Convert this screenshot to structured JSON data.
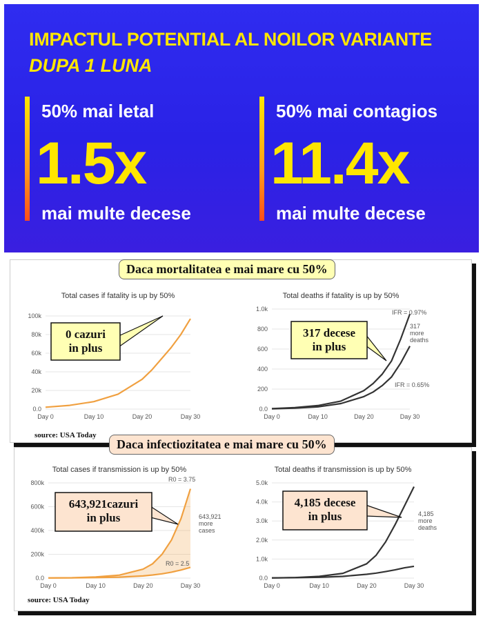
{
  "banner": {
    "title": "IMPACTUL POTENTIAL AL NOILOR VARIANTE",
    "subtitle": "DUPA 1 LUNA",
    "left": {
      "head": "50% mai letal",
      "value": "1.5x",
      "foot": "mai multe decese"
    },
    "right": {
      "head": "50% mai contagios",
      "value": "11.4x",
      "foot": "mai multe decese"
    }
  },
  "section1": {
    "title": "Daca mortalitatea e mai mare cu 50%",
    "source": "source: USA Today"
  },
  "section2": {
    "title": "Daca infectiozitatea e mai mare cu 50%",
    "source": "source: USA Today"
  },
  "colors": {
    "orange": "#f0a040",
    "dark": "#333333",
    "callout_yellow": "#ffffb4",
    "callout_peach": "#fde4d0",
    "banner_yellow": "#ffe600"
  },
  "chart_data": [
    {
      "type": "line",
      "title": "Total cases if fatality is up by 50%",
      "x_ticks": [
        "Day 0",
        "Day 10",
        "Day 20",
        "Day 30"
      ],
      "y_ticks": [
        "0.0",
        "20k",
        "40k",
        "60k",
        "80k",
        "100k"
      ],
      "ylim": [
        0,
        100000
      ],
      "xlim": [
        0,
        30
      ],
      "series": [
        {
          "color": "#f0a040",
          "x": [
            0,
            5,
            10,
            15,
            20,
            22,
            24,
            26,
            28,
            30
          ],
          "y": [
            2000,
            4000,
            8000,
            16000,
            32000,
            42000,
            54000,
            66000,
            80000,
            97000
          ]
        }
      ],
      "callout": [
        "0 cazuri",
        "in plus"
      ]
    },
    {
      "type": "line",
      "title": "Total deaths if fatality is up by 50%",
      "x_ticks": [
        "Day 0",
        "Day 10",
        "Day 20",
        "Day 30"
      ],
      "y_ticks": [
        "0.0",
        "200",
        "400",
        "600",
        "800",
        "1.0k"
      ],
      "ylim": [
        0,
        1000
      ],
      "xlim": [
        0,
        30
      ],
      "series": [
        {
          "color": "#333333",
          "label": "IFR = 0.97%",
          "x": [
            0,
            5,
            10,
            15,
            20,
            22,
            24,
            26,
            28,
            30
          ],
          "y": [
            5,
            15,
            35,
            80,
            185,
            255,
            350,
            480,
            700,
            950
          ]
        },
        {
          "color": "#333333",
          "label": "IFR = 0.65%",
          "x": [
            0,
            5,
            10,
            15,
            20,
            22,
            24,
            26,
            28,
            30
          ],
          "y": [
            3,
            10,
            22,
            55,
            125,
            170,
            235,
            320,
            460,
            630
          ]
        }
      ],
      "annotation": [
        "317",
        "more",
        "deaths"
      ],
      "callout": [
        "317 decese",
        "in plus"
      ]
    },
    {
      "type": "area",
      "title": "Total cases if transmission is up by 50%",
      "x_ticks": [
        "Day 0",
        "Day 10",
        "Day 20",
        "Day 30"
      ],
      "y_ticks": [
        "0.0",
        "200k",
        "400k",
        "600k",
        "800k"
      ],
      "ylim": [
        0,
        800000
      ],
      "xlim": [
        0,
        30
      ],
      "series": [
        {
          "color": "#f0a040",
          "label": "R0 = 3.75",
          "x": [
            0,
            5,
            10,
            15,
            20,
            22,
            24,
            26,
            28,
            30
          ],
          "y": [
            1000,
            3000,
            9000,
            25000,
            75000,
            120000,
            200000,
            320000,
            500000,
            750000
          ]
        },
        {
          "color": "#f0a040",
          "label": "R0 = 2.5",
          "x": [
            0,
            5,
            10,
            15,
            20,
            22,
            24,
            26,
            28,
            30
          ],
          "y": [
            1000,
            2000,
            4000,
            8000,
            18000,
            26000,
            36000,
            50000,
            68000,
            90000
          ]
        }
      ],
      "annotation": [
        "643,921",
        "more",
        "cases"
      ],
      "callout": [
        "643,921cazuri",
        "in plus"
      ]
    },
    {
      "type": "line",
      "title": "Total deaths if transmission is up by 50%",
      "x_ticks": [
        "Day 0",
        "Day 10",
        "Day 20",
        "Day 30"
      ],
      "y_ticks": [
        "0.0",
        "1.0k",
        "2.0k",
        "3.0k",
        "4.0k",
        "5.0k"
      ],
      "ylim": [
        0,
        5000
      ],
      "xlim": [
        0,
        30
      ],
      "series": [
        {
          "color": "#333333",
          "x": [
            0,
            5,
            10,
            15,
            20,
            22,
            24,
            26,
            28,
            30
          ],
          "y": [
            10,
            30,
            90,
            250,
            750,
            1200,
            1900,
            2800,
            3800,
            4800
          ]
        },
        {
          "color": "#333333",
          "x": [
            0,
            5,
            10,
            15,
            20,
            22,
            24,
            26,
            28,
            30
          ],
          "y": [
            8,
            20,
            45,
            90,
            200,
            260,
            340,
            430,
            540,
            620
          ]
        }
      ],
      "annotation": [
        "4,185",
        "more",
        "deaths"
      ],
      "callout": [
        "4,185 decese",
        "in plus"
      ]
    }
  ]
}
